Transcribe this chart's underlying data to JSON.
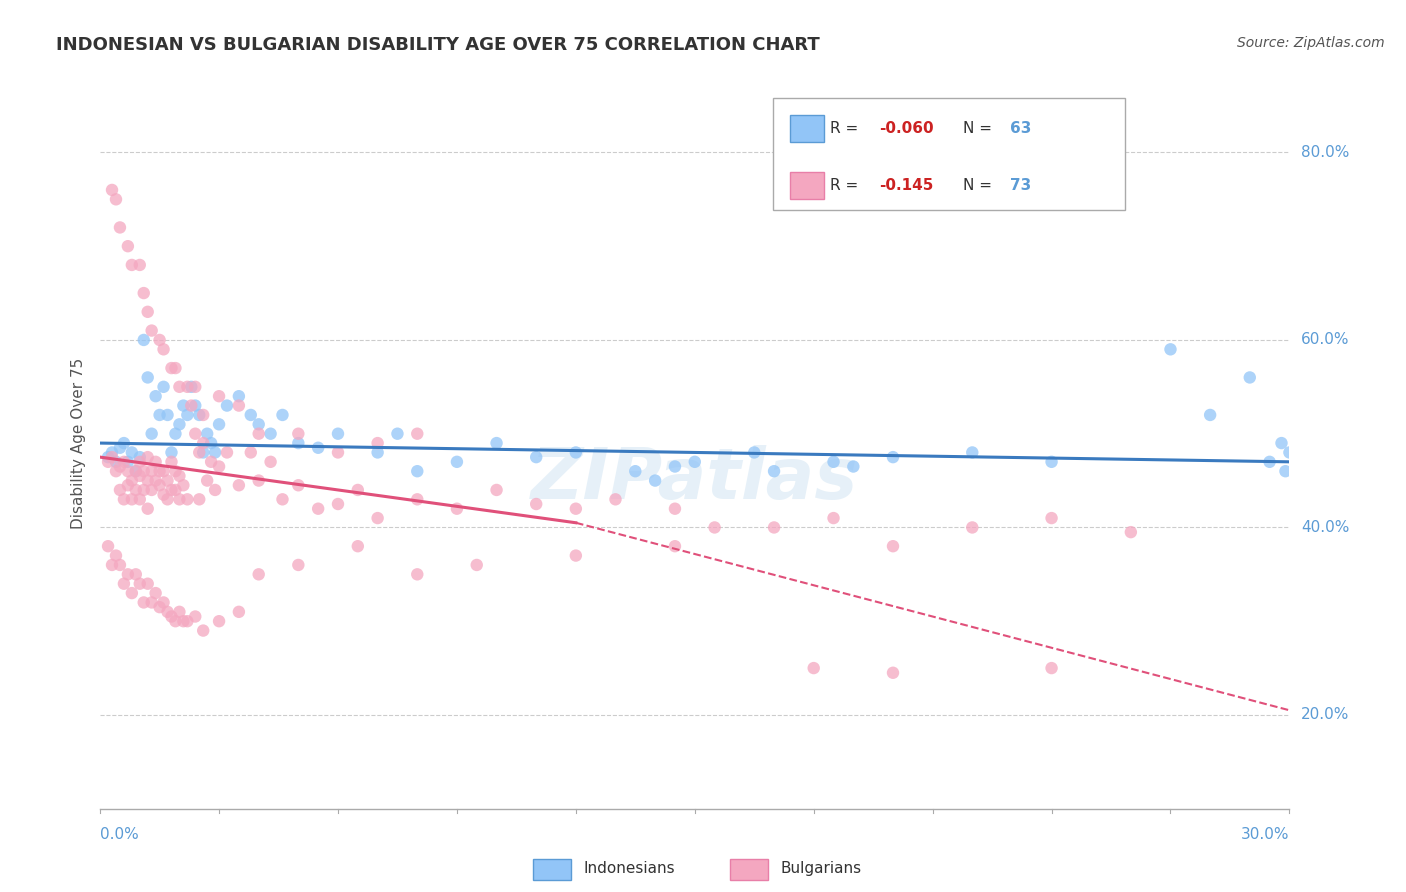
{
  "title": "INDONESIAN VS BULGARIAN DISABILITY AGE OVER 75 CORRELATION CHART",
  "source": "Source: ZipAtlas.com",
  "xmin": 0.0,
  "xmax": 30.0,
  "ymin": 10.0,
  "ymax": 88.0,
  "yticks": [
    20.0,
    40.0,
    60.0,
    80.0
  ],
  "xticks": [
    0.0,
    3.0,
    6.0,
    9.0,
    12.0,
    15.0,
    18.0,
    21.0,
    24.0,
    27.0,
    30.0
  ],
  "indonesian_color": "#92c5f7",
  "bulgarian_color": "#f4a7c0",
  "trend_indonesian_color": "#3a7abf",
  "trend_bulgarian_color": "#e0507a",
  "watermark": "ZIPatlas",
  "indonesian_x": [
    0.2,
    0.3,
    0.4,
    0.5,
    0.6,
    0.7,
    0.8,
    0.9,
    1.0,
    1.1,
    1.2,
    1.3,
    1.4,
    1.5,
    1.6,
    1.7,
    1.8,
    1.9,
    2.0,
    2.1,
    2.2,
    2.3,
    2.4,
    2.5,
    2.6,
    2.7,
    2.8,
    2.9,
    3.0,
    3.2,
    3.5,
    3.8,
    4.0,
    4.3,
    4.6,
    5.0,
    5.5,
    6.0,
    7.0,
    7.5,
    8.0,
    9.0,
    10.0,
    11.0,
    12.0,
    13.5,
    14.0,
    14.5,
    15.0,
    16.5,
    17.0,
    18.5,
    19.0,
    20.0,
    22.0,
    24.0,
    27.0,
    28.0,
    29.0,
    29.5,
    29.8,
    29.9,
    30.0
  ],
  "indonesian_y": [
    47.5,
    48.0,
    47.0,
    48.5,
    49.0,
    47.0,
    48.0,
    46.0,
    47.5,
    60.0,
    56.0,
    50.0,
    54.0,
    52.0,
    55.0,
    52.0,
    48.0,
    50.0,
    51.0,
    53.0,
    52.0,
    55.0,
    53.0,
    52.0,
    48.0,
    50.0,
    49.0,
    48.0,
    51.0,
    53.0,
    54.0,
    52.0,
    51.0,
    50.0,
    52.0,
    49.0,
    48.5,
    50.0,
    48.0,
    50.0,
    46.0,
    47.0,
    49.0,
    47.5,
    48.0,
    46.0,
    45.0,
    46.5,
    47.0,
    48.0,
    46.0,
    47.0,
    46.5,
    47.5,
    48.0,
    47.0,
    59.0,
    52.0,
    56.0,
    47.0,
    49.0,
    46.0,
    48.0
  ],
  "bulgarian_x": [
    0.2,
    0.3,
    0.4,
    0.5,
    0.5,
    0.6,
    0.6,
    0.7,
    0.7,
    0.8,
    0.8,
    0.9,
    0.9,
    1.0,
    1.0,
    1.0,
    1.1,
    1.1,
    1.2,
    1.2,
    1.2,
    1.3,
    1.3,
    1.4,
    1.4,
    1.5,
    1.5,
    1.6,
    1.6,
    1.7,
    1.7,
    1.8,
    1.8,
    1.9,
    1.9,
    2.0,
    2.0,
    2.1,
    2.2,
    2.3,
    2.4,
    2.5,
    2.5,
    2.6,
    2.7,
    2.8,
    2.9,
    3.0,
    3.2,
    3.5,
    3.8,
    4.0,
    4.3,
    4.6,
    5.0,
    5.5,
    6.0,
    6.5,
    7.0,
    8.0,
    9.0,
    10.0,
    11.0,
    12.0,
    13.0,
    14.5,
    15.5,
    17.0,
    18.5,
    20.0,
    22.0,
    24.0,
    26.0
  ],
  "bulgarian_y": [
    47.0,
    47.5,
    46.0,
    46.5,
    44.0,
    47.0,
    43.0,
    46.0,
    44.5,
    45.0,
    43.0,
    46.0,
    44.0,
    47.0,
    45.5,
    43.0,
    46.0,
    44.0,
    47.5,
    45.0,
    42.0,
    46.0,
    44.0,
    47.0,
    45.0,
    46.0,
    44.5,
    46.0,
    43.5,
    45.0,
    43.0,
    47.0,
    44.0,
    46.0,
    44.0,
    45.5,
    43.0,
    44.5,
    43.0,
    53.0,
    50.0,
    48.0,
    43.0,
    49.0,
    45.0,
    47.0,
    44.0,
    46.5,
    48.0,
    44.5,
    48.0,
    45.0,
    47.0,
    43.0,
    44.5,
    42.0,
    42.5,
    44.0,
    41.0,
    43.0,
    42.0,
    44.0,
    42.5,
    42.0,
    43.0,
    42.0,
    40.0,
    40.0,
    41.0,
    38.0,
    40.0,
    41.0,
    39.5
  ],
  "bulgarian_upper_x": [
    0.3,
    0.4,
    0.5,
    0.7,
    0.8,
    1.0,
    1.1,
    1.2,
    1.3,
    1.5,
    1.6,
    1.8,
    1.9,
    2.0,
    2.2,
    2.4,
    2.6,
    3.0,
    3.5,
    4.0,
    5.0,
    6.0,
    7.0,
    8.0
  ],
  "bulgarian_upper_y": [
    76.0,
    75.0,
    72.0,
    70.0,
    68.0,
    68.0,
    65.0,
    63.0,
    61.0,
    60.0,
    59.0,
    57.0,
    57.0,
    55.0,
    55.0,
    55.0,
    52.0,
    54.0,
    53.0,
    50.0,
    50.0,
    48.0,
    49.0,
    50.0
  ],
  "bulgarian_lower_x": [
    0.2,
    0.3,
    0.4,
    0.5,
    0.6,
    0.7,
    0.8,
    0.9,
    1.0,
    1.1,
    1.2,
    1.3,
    1.4,
    1.5,
    1.6,
    1.7,
    1.8,
    1.9,
    2.0,
    2.1,
    2.2,
    2.4,
    2.6,
    3.0,
    3.5,
    4.0,
    5.0,
    6.5,
    8.0,
    9.5,
    12.0,
    14.5,
    18.0,
    20.0,
    24.0
  ],
  "bulgarian_lower_y": [
    38.0,
    36.0,
    37.0,
    36.0,
    34.0,
    35.0,
    33.0,
    35.0,
    34.0,
    32.0,
    34.0,
    32.0,
    33.0,
    31.5,
    32.0,
    31.0,
    30.5,
    30.0,
    31.0,
    30.0,
    30.0,
    30.5,
    29.0,
    30.0,
    31.0,
    35.0,
    36.0,
    38.0,
    35.0,
    36.0,
    37.0,
    38.0,
    25.0,
    24.5,
    25.0
  ],
  "trend_indo_x0": 0.0,
  "trend_indo_x1": 30.0,
  "trend_indo_y0": 49.0,
  "trend_indo_y1": 47.0,
  "trend_bulg_solid_x0": 0.0,
  "trend_bulg_solid_x1": 12.0,
  "trend_bulg_solid_y0": 47.5,
  "trend_bulg_solid_y1": 40.5,
  "trend_bulg_dash_x0": 12.0,
  "trend_bulg_dash_x1": 30.0,
  "trend_bulg_dash_y0": 40.5,
  "trend_bulg_dash_y1": 20.5
}
